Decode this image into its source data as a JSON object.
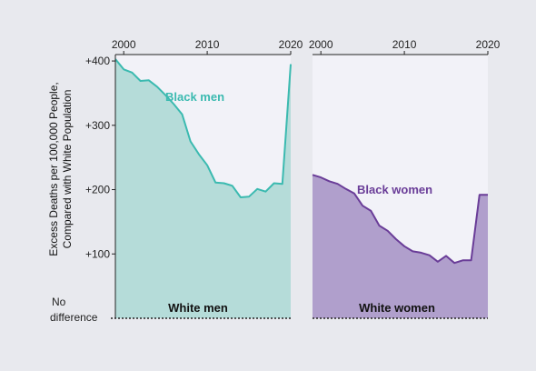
{
  "chart_data": [
    {
      "type": "area",
      "panel": "men",
      "series": [
        {
          "name": "Black men",
          "color": "#3bbab0",
          "fill": "#b5dcd9",
          "x": [
            1999,
            2000,
            2001,
            2002,
            2003,
            2004,
            2005,
            2006,
            2007,
            2008,
            2009,
            2010,
            2011,
            2012,
            2013,
            2014,
            2015,
            2016,
            2017,
            2018,
            2019,
            2020
          ],
          "values": [
            403,
            387,
            382,
            369,
            370,
            360,
            347,
            333,
            317,
            275,
            255,
            238,
            211,
            210,
            206,
            188,
            189,
            201,
            197,
            210,
            209,
            395
          ]
        }
      ],
      "baseline_label": "White men",
      "xticks": [
        2000,
        2010,
        2020
      ],
      "xlim": [
        1999,
        2020
      ],
      "ylim": [
        0,
        410
      ]
    },
    {
      "type": "area",
      "panel": "women",
      "series": [
        {
          "name": "Black women",
          "color": "#6a3d98",
          "fill": "#b09fcc",
          "x": [
            1999,
            2000,
            2001,
            2002,
            2003,
            2004,
            2005,
            2006,
            2007,
            2008,
            2009,
            2010,
            2011,
            2012,
            2013,
            2014,
            2015,
            2016,
            2017,
            2018,
            2019,
            2020
          ],
          "values": [
            223,
            219,
            213,
            209,
            201,
            194,
            175,
            167,
            144,
            136,
            123,
            112,
            104,
            102,
            98,
            88,
            97,
            86,
            90,
            90,
            192,
            192
          ]
        }
      ],
      "baseline_label": "White women",
      "xticks": [
        2000,
        2010,
        2020
      ],
      "xlim": [
        1999,
        2020
      ],
      "ylim": [
        0,
        410
      ]
    }
  ],
  "y_axis": {
    "label_line1": "Excess Deaths per 100,000 People,",
    "label_line2": "Compared with White Population",
    "ticks": [
      {
        "value": 400,
        "label": "+400"
      },
      {
        "value": 300,
        "label": "+300"
      },
      {
        "value": 200,
        "label": "+200"
      },
      {
        "value": 100,
        "label": "+100"
      }
    ],
    "zero_label_line1": "No",
    "zero_label_line2": "difference"
  },
  "colors": {
    "background": "#e8e9ee",
    "panel_bg": "#f2f2f8",
    "axis": "#222222"
  }
}
